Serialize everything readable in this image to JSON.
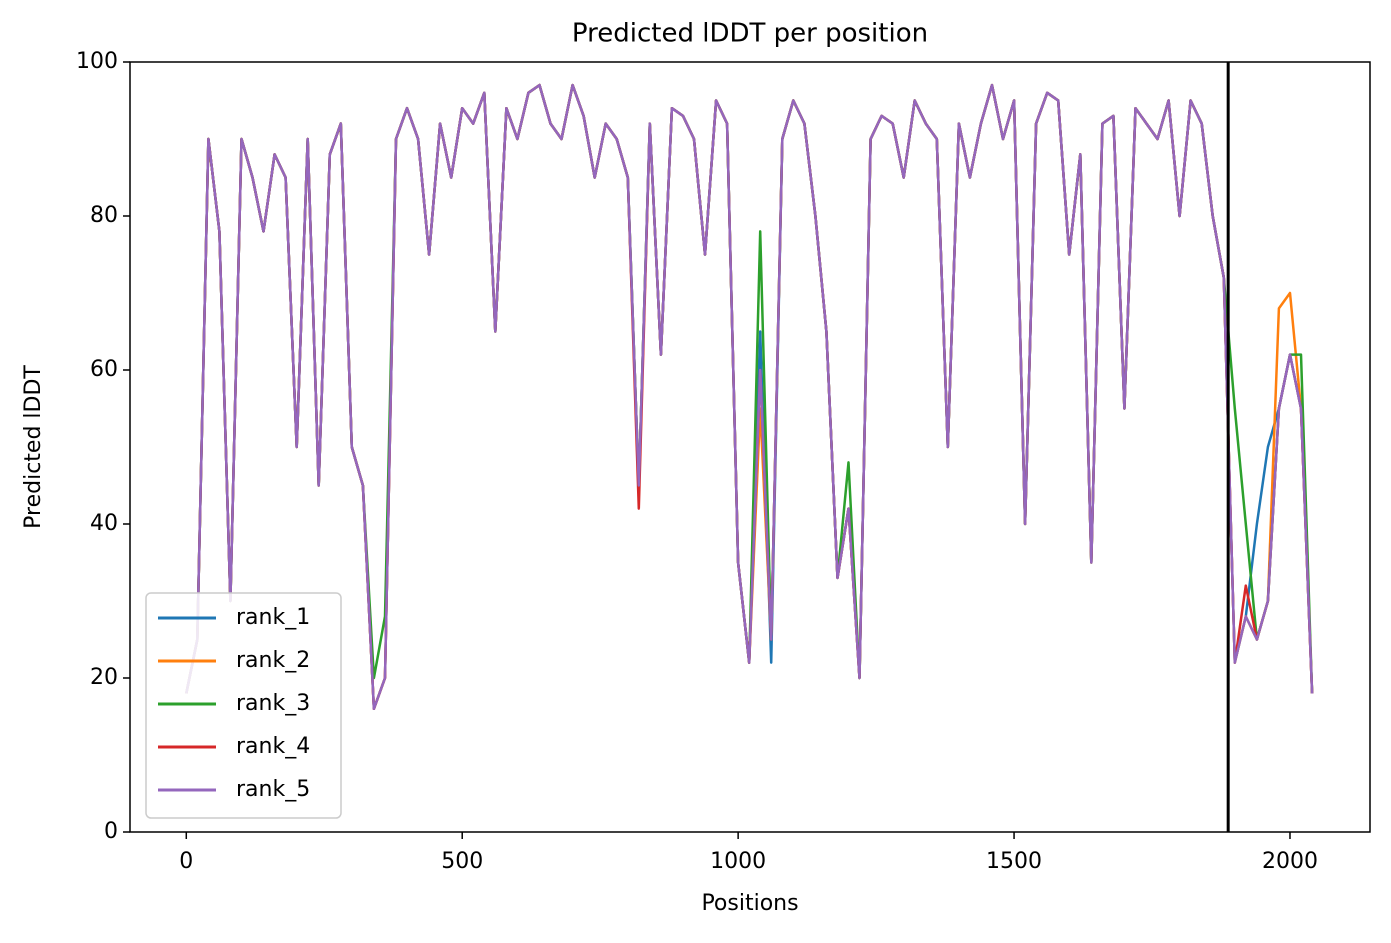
{
  "chart_data": {
    "type": "line",
    "title": "Predicted lDDT per position",
    "xlabel": "Positions",
    "ylabel": "Predicted lDDT",
    "x": [
      0,
      20,
      40,
      60,
      80,
      100,
      120,
      140,
      160,
      180,
      200,
      220,
      240,
      260,
      280,
      300,
      320,
      340,
      360,
      380,
      400,
      420,
      440,
      460,
      480,
      500,
      520,
      540,
      560,
      580,
      600,
      620,
      640,
      660,
      680,
      700,
      720,
      740,
      760,
      780,
      800,
      820,
      840,
      860,
      880,
      900,
      920,
      940,
      960,
      980,
      1000,
      1020,
      1040,
      1060,
      1080,
      1100,
      1120,
      1140,
      1160,
      1180,
      1200,
      1220,
      1240,
      1260,
      1280,
      1300,
      1320,
      1340,
      1360,
      1380,
      1400,
      1420,
      1440,
      1460,
      1480,
      1500,
      1520,
      1540,
      1560,
      1580,
      1600,
      1620,
      1640,
      1660,
      1680,
      1700,
      1720,
      1740,
      1760,
      1780,
      1800,
      1820,
      1840,
      1860,
      1880,
      1900,
      1920,
      1940,
      1960,
      1980,
      2000,
      2020,
      2040
    ],
    "series": [
      {
        "name": "rank_1",
        "color": "#1f77b4",
        "values": [
          18,
          25,
          90,
          78,
          30,
          90,
          85,
          78,
          88,
          85,
          50,
          90,
          45,
          88,
          92,
          50,
          45,
          16,
          20,
          90,
          94,
          90,
          75,
          92,
          85,
          94,
          92,
          96,
          65,
          94,
          90,
          96,
          97,
          92,
          90,
          97,
          93,
          85,
          92,
          90,
          85,
          45,
          92,
          62,
          94,
          93,
          90,
          75,
          95,
          92,
          35,
          22,
          65,
          22,
          90,
          95,
          92,
          80,
          65,
          33,
          42,
          20,
          90,
          93,
          92,
          85,
          95,
          92,
          90,
          50,
          92,
          85,
          92,
          97,
          90,
          95,
          40,
          92,
          96,
          95,
          75,
          88,
          35,
          92,
          93,
          55,
          94,
          92,
          90,
          95,
          80,
          95,
          92,
          80,
          72,
          22,
          28,
          40,
          50,
          55,
          62,
          55,
          18
        ]
      },
      {
        "name": "rank_2",
        "color": "#ff7f0e",
        "values": [
          18,
          25,
          90,
          78,
          30,
          90,
          85,
          78,
          88,
          85,
          50,
          90,
          45,
          88,
          92,
          50,
          45,
          16,
          20,
          90,
          94,
          90,
          75,
          92,
          85,
          94,
          92,
          96,
          65,
          94,
          90,
          96,
          97,
          92,
          90,
          97,
          93,
          85,
          92,
          90,
          85,
          45,
          92,
          62,
          94,
          93,
          90,
          75,
          95,
          92,
          35,
          22,
          55,
          25,
          90,
          95,
          92,
          80,
          65,
          33,
          42,
          20,
          90,
          93,
          92,
          85,
          95,
          92,
          90,
          50,
          92,
          85,
          92,
          97,
          90,
          95,
          40,
          92,
          96,
          95,
          75,
          88,
          35,
          92,
          93,
          55,
          94,
          92,
          90,
          95,
          80,
          95,
          92,
          80,
          72,
          22,
          28,
          25,
          30,
          68,
          70,
          55,
          18
        ]
      },
      {
        "name": "rank_3",
        "color": "#2ca02c",
        "values": [
          18,
          25,
          90,
          78,
          30,
          90,
          85,
          78,
          88,
          85,
          50,
          90,
          45,
          88,
          92,
          50,
          45,
          20,
          28,
          90,
          94,
          90,
          75,
          92,
          85,
          94,
          92,
          96,
          65,
          94,
          90,
          96,
          97,
          92,
          90,
          97,
          93,
          85,
          92,
          90,
          85,
          45,
          92,
          62,
          94,
          93,
          90,
          75,
          95,
          92,
          35,
          22,
          78,
          25,
          90,
          95,
          92,
          80,
          65,
          33,
          48,
          20,
          90,
          93,
          92,
          85,
          95,
          92,
          90,
          50,
          92,
          85,
          92,
          97,
          90,
          95,
          40,
          92,
          96,
          95,
          75,
          88,
          35,
          92,
          93,
          55,
          94,
          92,
          90,
          95,
          80,
          95,
          92,
          80,
          72,
          55,
          40,
          25,
          30,
          55,
          62,
          62,
          18
        ]
      },
      {
        "name": "rank_4",
        "color": "#d62728",
        "values": [
          18,
          25,
          90,
          78,
          30,
          90,
          85,
          78,
          88,
          85,
          50,
          90,
          45,
          88,
          92,
          50,
          45,
          16,
          20,
          90,
          94,
          90,
          75,
          92,
          85,
          94,
          92,
          96,
          65,
          94,
          90,
          96,
          97,
          92,
          90,
          97,
          93,
          85,
          92,
          90,
          85,
          42,
          92,
          62,
          94,
          93,
          90,
          75,
          95,
          92,
          35,
          22,
          60,
          25,
          90,
          95,
          92,
          80,
          65,
          33,
          42,
          20,
          90,
          93,
          92,
          85,
          95,
          92,
          90,
          50,
          92,
          85,
          92,
          97,
          90,
          95,
          40,
          92,
          96,
          95,
          75,
          88,
          35,
          92,
          93,
          55,
          94,
          92,
          90,
          95,
          80,
          95,
          92,
          80,
          72,
          22,
          32,
          25,
          30,
          55,
          62,
          55,
          18
        ]
      },
      {
        "name": "rank_5",
        "color": "#9467bd",
        "values": [
          18,
          25,
          90,
          78,
          30,
          90,
          85,
          78,
          88,
          85,
          50,
          90,
          45,
          88,
          92,
          50,
          45,
          16,
          20,
          90,
          94,
          90,
          75,
          92,
          85,
          94,
          92,
          96,
          65,
          94,
          90,
          96,
          97,
          92,
          90,
          97,
          93,
          85,
          92,
          90,
          85,
          45,
          92,
          62,
          94,
          93,
          90,
          75,
          95,
          92,
          35,
          22,
          60,
          25,
          90,
          95,
          92,
          80,
          65,
          33,
          42,
          20,
          90,
          93,
          92,
          85,
          95,
          92,
          90,
          50,
          92,
          85,
          92,
          97,
          90,
          95,
          40,
          92,
          96,
          95,
          75,
          88,
          35,
          92,
          93,
          55,
          94,
          92,
          90,
          95,
          80,
          95,
          92,
          80,
          72,
          22,
          28,
          25,
          30,
          55,
          62,
          55,
          18
        ]
      }
    ],
    "vlines": [
      1888
    ],
    "vline_color": "#000000",
    "xlim": [
      -102,
      2145
    ],
    "xticks": [
      0,
      500,
      1000,
      1500,
      2000
    ],
    "ylim": [
      0,
      100
    ],
    "yticks": [
      0,
      20,
      40,
      60,
      80,
      100
    ],
    "legend": "lower left"
  }
}
